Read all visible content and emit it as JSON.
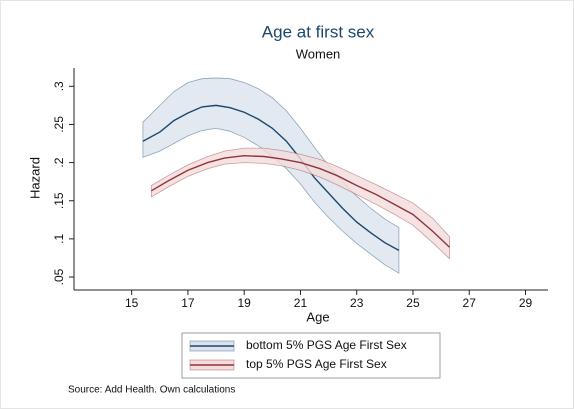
{
  "chart_data": {
    "type": "line",
    "title": "Age at first sex",
    "subtitle": "Women",
    "xlabel": "Age",
    "ylabel": "Hazard",
    "note": "Source: Add Health.  Own calculations",
    "xlim": [
      12.95,
      29.8
    ],
    "ylim": [
      0.033,
      0.324
    ],
    "xticks": [
      15,
      17,
      19,
      21,
      23,
      25,
      27,
      29
    ],
    "yticks": [
      {
        "value": 0.05,
        "label": ".05"
      },
      {
        "value": 0.1,
        "label": ".1"
      },
      {
        "value": 0.15,
        "label": ".15"
      },
      {
        "value": 0.2,
        "label": ".2"
      },
      {
        "value": 0.25,
        "label": ".25"
      },
      {
        "value": 0.3,
        "label": ".3"
      }
    ],
    "legend": "bottom",
    "series": [
      {
        "name": "bottom 5% PGS Age First Sex",
        "color": "#1a476f",
        "band_color": "#dce3ec",
        "x": [
          15.4,
          16,
          16.5,
          17,
          17.5,
          18,
          18.5,
          19,
          19.5,
          20,
          20.5,
          21,
          21.5,
          22,
          22.5,
          23,
          23.5,
          24,
          24.5
        ],
        "values": [
          0.228,
          0.24,
          0.255,
          0.265,
          0.273,
          0.275,
          0.272,
          0.266,
          0.257,
          0.245,
          0.228,
          0.205,
          0.18,
          0.16,
          0.14,
          0.122,
          0.108,
          0.095,
          0.085
        ],
        "upper": [
          0.253,
          0.275,
          0.293,
          0.305,
          0.31,
          0.311,
          0.31,
          0.305,
          0.297,
          0.285,
          0.268,
          0.245,
          0.22,
          0.196,
          0.175,
          0.156,
          0.14,
          0.126,
          0.115
        ],
        "lower": [
          0.207,
          0.215,
          0.225,
          0.235,
          0.242,
          0.245,
          0.241,
          0.233,
          0.222,
          0.208,
          0.192,
          0.172,
          0.148,
          0.128,
          0.11,
          0.094,
          0.08,
          0.066,
          0.055
        ]
      },
      {
        "name": "top 5% PGS Age First Sex",
        "color": "#90353b",
        "band_color": "#f3dcdc",
        "x": [
          15.7,
          16.3,
          17,
          17.7,
          18.3,
          19,
          19.7,
          20.3,
          21,
          21.7,
          22.3,
          23,
          23.7,
          24.3,
          25,
          25.7,
          26.3
        ],
        "values": [
          0.163,
          0.176,
          0.19,
          0.2,
          0.206,
          0.209,
          0.208,
          0.205,
          0.2,
          0.192,
          0.183,
          0.17,
          0.158,
          0.146,
          0.132,
          0.11,
          0.089
        ],
        "upper": [
          0.17,
          0.183,
          0.197,
          0.208,
          0.215,
          0.219,
          0.219,
          0.216,
          0.211,
          0.204,
          0.195,
          0.183,
          0.171,
          0.16,
          0.147,
          0.127,
          0.103
        ],
        "lower": [
          0.155,
          0.168,
          0.182,
          0.192,
          0.198,
          0.2,
          0.199,
          0.196,
          0.19,
          0.181,
          0.171,
          0.158,
          0.145,
          0.133,
          0.118,
          0.095,
          0.074
        ]
      }
    ]
  }
}
